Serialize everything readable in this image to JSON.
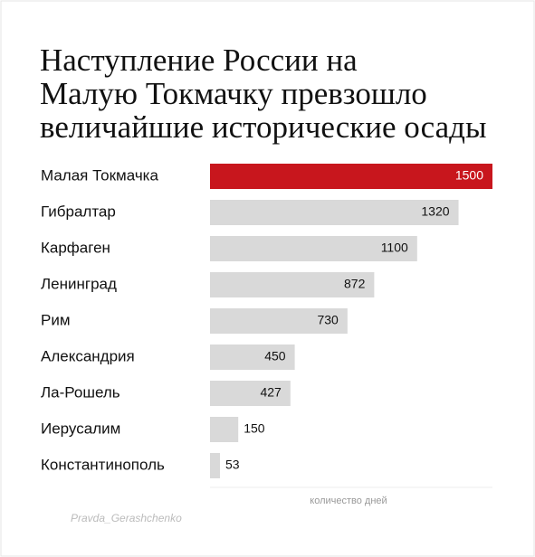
{
  "chart_data": {
    "type": "bar",
    "orientation": "horizontal",
    "title": "Наступление России на Малую Токмачку превзошло величайшие исторические осады",
    "categories": [
      "Малая Токмачка",
      "Гибралтар",
      "Карфаген",
      "Ленинград",
      "Рим",
      "Александрия",
      "Ла-Рошель",
      "Иерусалим",
      "Константинополь"
    ],
    "values": [
      1500,
      1320,
      1100,
      872,
      730,
      450,
      427,
      150,
      53
    ],
    "colors": [
      "#c8161d",
      "#d9d9d9",
      "#d9d9d9",
      "#d9d9d9",
      "#d9d9d9",
      "#d9d9d9",
      "#d9d9d9",
      "#d9d9d9",
      "#d9d9d9"
    ],
    "xlim": [
      0,
      1500
    ],
    "xlabel": "количество дней",
    "watermark": "Pravda_Gerashchenko"
  }
}
